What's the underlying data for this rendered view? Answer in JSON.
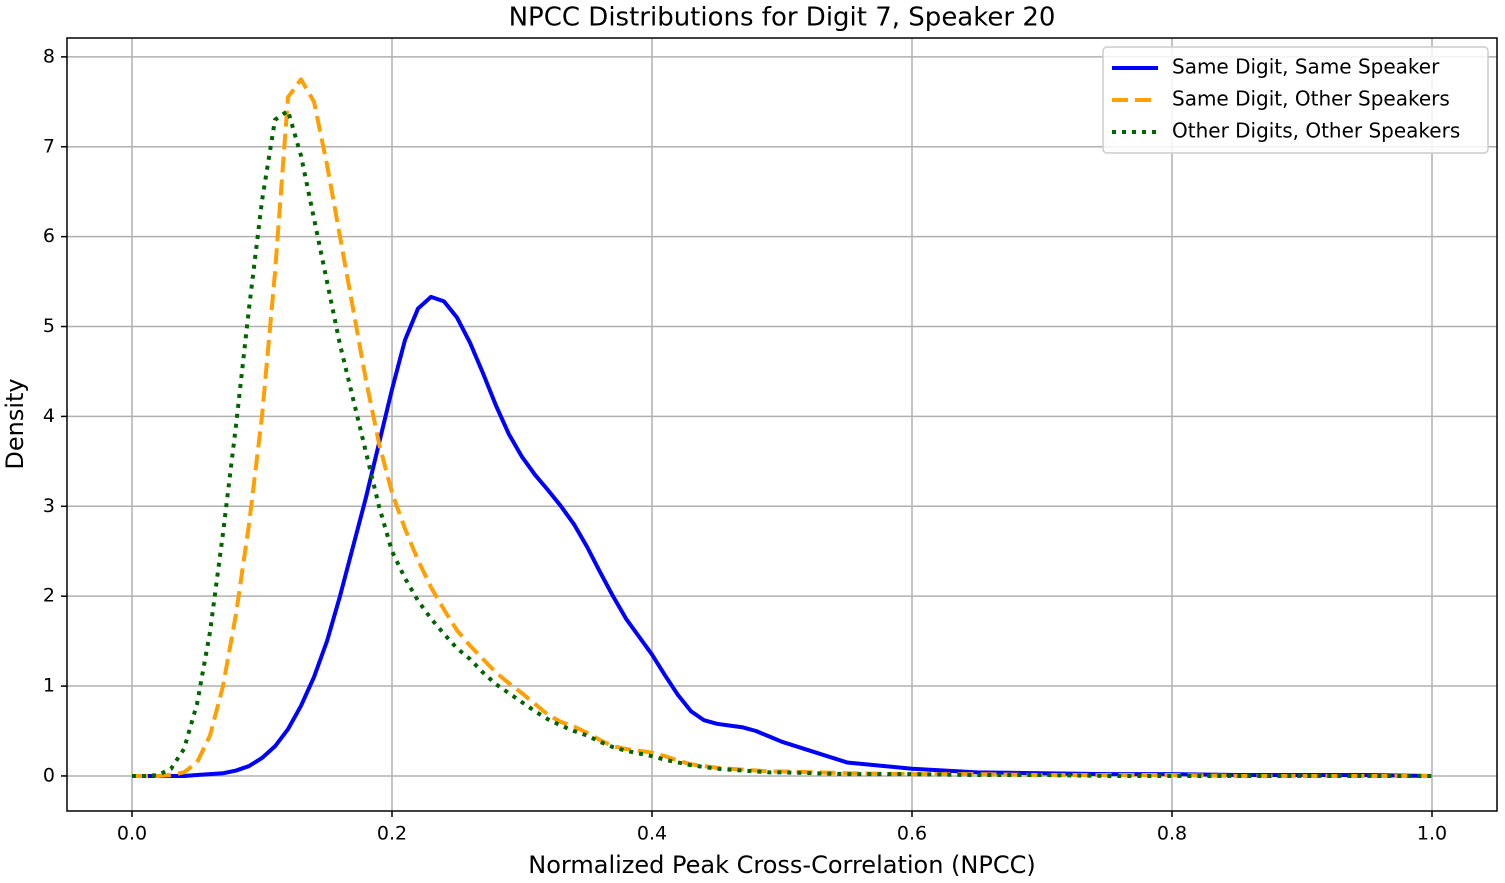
{
  "chart_data": {
    "type": "line",
    "title": "NPCC Distributions for Digit 7, Speaker 20",
    "xlabel": "Normalized Peak Cross-Correlation (NPCC)",
    "ylabel": "Density",
    "x": [
      0,
      0.01,
      0.02,
      0.03,
      0.04,
      0.05,
      0.06,
      0.07,
      0.08,
      0.09,
      0.1,
      0.11,
      0.12,
      0.13,
      0.14,
      0.15,
      0.16,
      0.17,
      0.18,
      0.19,
      0.2,
      0.21,
      0.22,
      0.23,
      0.24,
      0.25,
      0.26,
      0.27,
      0.28,
      0.29,
      0.3,
      0.31,
      0.32,
      0.33,
      0.34,
      0.35,
      0.36,
      0.37,
      0.38,
      0.39,
      0.4,
      0.41,
      0.42,
      0.43,
      0.44,
      0.45,
      0.46,
      0.47,
      0.48,
      0.49,
      0.5,
      0.55,
      0.6,
      0.65,
      0.7,
      0.75,
      0.8,
      0.85,
      0.9,
      0.95,
      1.0
    ],
    "series": [
      {
        "name": "Same Digit, Same Speaker",
        "color": "#0000ff",
        "style": "solid",
        "values": [
          0,
          0,
          0,
          0,
          0,
          0.01,
          0.02,
          0.03,
          0.06,
          0.11,
          0.2,
          0.33,
          0.52,
          0.78,
          1.1,
          1.5,
          2.0,
          2.55,
          3.1,
          3.7,
          4.3,
          4.85,
          5.2,
          5.33,
          5.28,
          5.1,
          4.82,
          4.48,
          4.12,
          3.8,
          3.55,
          3.35,
          3.18,
          3.0,
          2.8,
          2.55,
          2.27,
          2.0,
          1.75,
          1.55,
          1.35,
          1.12,
          0.9,
          0.72,
          0.62,
          0.58,
          0.56,
          0.54,
          0.5,
          0.44,
          0.38,
          0.15,
          0.08,
          0.04,
          0.03,
          0.02,
          0.02,
          0.01,
          0.01,
          0.01,
          0
        ]
      },
      {
        "name": "Same Digit, Other Speakers",
        "color": "#ff9f00",
        "style": "dashed",
        "values": [
          0,
          0,
          0,
          0.01,
          0.04,
          0.15,
          0.45,
          1.0,
          1.8,
          2.8,
          4.0,
          5.6,
          7.55,
          7.75,
          7.5,
          6.8,
          6.0,
          5.2,
          4.4,
          3.7,
          3.15,
          2.75,
          2.4,
          2.1,
          1.85,
          1.62,
          1.45,
          1.3,
          1.15,
          1.03,
          0.92,
          0.8,
          0.68,
          0.6,
          0.55,
          0.48,
          0.4,
          0.33,
          0.3,
          0.28,
          0.26,
          0.22,
          0.17,
          0.13,
          0.11,
          0.09,
          0.08,
          0.07,
          0.06,
          0.05,
          0.05,
          0.03,
          0.02,
          0.02,
          0.01,
          0.01,
          0.01,
          0,
          0,
          0,
          0
        ]
      },
      {
        "name": "Other Digits, Other Speakers",
        "color": "#006400",
        "style": "dotted",
        "values": [
          0,
          0,
          0.01,
          0.08,
          0.3,
          0.8,
          1.6,
          2.7,
          3.9,
          5.2,
          6.4,
          7.3,
          7.4,
          6.9,
          6.2,
          5.5,
          4.8,
          4.2,
          3.6,
          3.0,
          2.5,
          2.2,
          1.95,
          1.75,
          1.58,
          1.42,
          1.3,
          1.15,
          1.02,
          0.92,
          0.82,
          0.72,
          0.63,
          0.56,
          0.5,
          0.45,
          0.38,
          0.32,
          0.28,
          0.25,
          0.22,
          0.18,
          0.15,
          0.12,
          0.1,
          0.08,
          0.07,
          0.06,
          0.05,
          0.04,
          0.04,
          0.02,
          0.02,
          0.01,
          0.01,
          0,
          0,
          0,
          0,
          0,
          0
        ]
      }
    ],
    "xlim": [
      -0.05,
      1.05
    ],
    "ylim": [
      -0.39,
      8.21
    ],
    "xticks": [
      {
        "value": 0,
        "label": "0.0"
      },
      0.2,
      0.4,
      0.6,
      0.8,
      {
        "value": 1,
        "label": "1.0"
      }
    ],
    "yticks": [
      0,
      1,
      2,
      3,
      4,
      5,
      6,
      7,
      8
    ],
    "grid": true,
    "legend": "upper right"
  }
}
